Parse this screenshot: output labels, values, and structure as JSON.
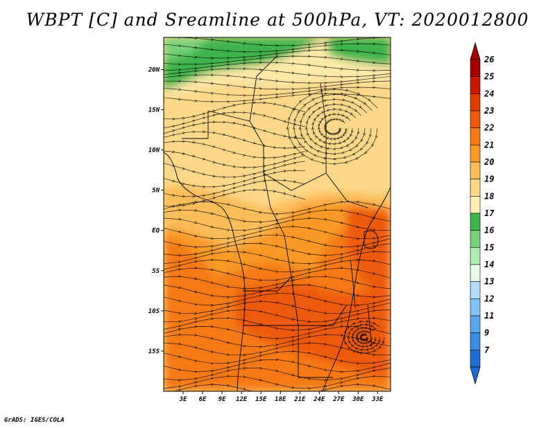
{
  "title": "WBPT [C] and Sreamline at 500hPa, VT: 2020012800",
  "credit": "GrADS: IGES/COLA",
  "map": {
    "lon_range": [
      0,
      35
    ],
    "lat_range": [
      -20,
      24
    ],
    "lat_ticks": [
      {
        "value": 20,
        "label": "20N"
      },
      {
        "value": 15,
        "label": "15N"
      },
      {
        "value": 10,
        "label": "10N"
      },
      {
        "value": 5,
        "label": "5N"
      },
      {
        "value": 0,
        "label": "EQ"
      },
      {
        "value": -5,
        "label": "5S"
      },
      {
        "value": -10,
        "label": "10S"
      },
      {
        "value": -15,
        "label": "15S"
      }
    ],
    "lon_ticks": [
      {
        "value": 3,
        "label": "3E"
      },
      {
        "value": 6,
        "label": "6E"
      },
      {
        "value": 9,
        "label": "9E"
      },
      {
        "value": 12,
        "label": "12E"
      },
      {
        "value": 15,
        "label": "15E"
      },
      {
        "value": 18,
        "label": "18E"
      },
      {
        "value": 21,
        "label": "21E"
      },
      {
        "value": 24,
        "label": "24E"
      },
      {
        "value": 27,
        "label": "27E"
      },
      {
        "value": 30,
        "label": "30E"
      },
      {
        "value": 33,
        "label": "33E"
      }
    ]
  },
  "colorbar": {
    "levels": [
      {
        "label": "26",
        "color": "#a50000"
      },
      {
        "label": "25",
        "color": "#c81800"
      },
      {
        "label": "24",
        "color": "#e03c00"
      },
      {
        "label": "23",
        "color": "#ee5a0a"
      },
      {
        "label": "22",
        "color": "#f57a14"
      },
      {
        "label": "21",
        "color": "#fa9a28"
      },
      {
        "label": "20",
        "color": "#fcbc5a"
      },
      {
        "label": "19",
        "color": "#fdd88a"
      },
      {
        "label": "18",
        "color": "#fff0b4"
      },
      {
        "label": "17",
        "color": "#3cb44b"
      },
      {
        "label": "16",
        "color": "#78d27a"
      },
      {
        "label": "15",
        "color": "#b4ecb4"
      },
      {
        "label": "14",
        "color": "#e6fae6"
      },
      {
        "label": "13",
        "color": "#b4dcfa"
      },
      {
        "label": "12",
        "color": "#82c3f5"
      },
      {
        "label": "11",
        "color": "#5aa5eb"
      },
      {
        "label": "9",
        "color": "#3c8ce1"
      },
      {
        "label": "7",
        "color": "#1e6ed2"
      }
    ],
    "top_arrow_color": "#a50000",
    "bottom_arrow_color": "#1e6ed2"
  },
  "field_colors": {
    "green": "#3cb44b",
    "light_green": "#78d27a",
    "pale": "#fde9a8",
    "yellow": "#fdd88a",
    "light_orange": "#fcbc5a",
    "orange": "#fa9a28",
    "dark_orange": "#f57a14",
    "red_orange": "#ee5a0a"
  }
}
